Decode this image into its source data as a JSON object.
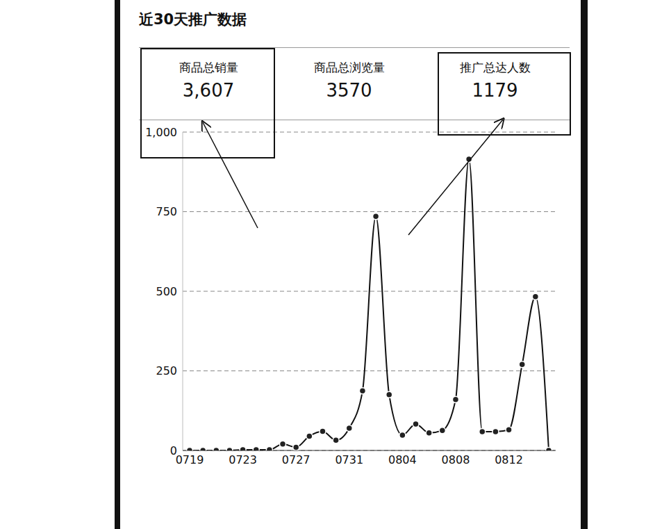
{
  "summary": [
    {
      "label": "商品总销量",
      "value": "3,607"
    },
    {
      "label": "商品总浏览量",
      "value": "3570"
    },
    {
      "label": "推广总达人数",
      "value": "1179"
    }
  ],
  "chart_data": {
    "type": "line",
    "title": "近30天推广数据",
    "categories": [
      "0719",
      null,
      null,
      null,
      "0723",
      null,
      null,
      null,
      "0727",
      null,
      null,
      null,
      "0731",
      null,
      null,
      null,
      "0804",
      null,
      null,
      null,
      "0808",
      null,
      null,
      null,
      "0812",
      null,
      null,
      null
    ],
    "values": [
      0,
      0,
      0,
      0,
      2,
      2,
      2,
      20,
      10,
      45,
      60,
      32,
      70,
      187,
      735,
      175,
      48,
      83,
      55,
      63,
      160,
      915,
      59,
      59,
      65,
      270,
      483,
      0
    ],
    "color": "#111111",
    "marker": "circle",
    "line_style": "solid",
    "ylim": [
      0,
      1000
    ],
    "yticks": [
      0,
      250,
      500,
      750,
      {
        "value": 1000,
        "label": "1,000"
      }
    ],
    "grid": true
  }
}
